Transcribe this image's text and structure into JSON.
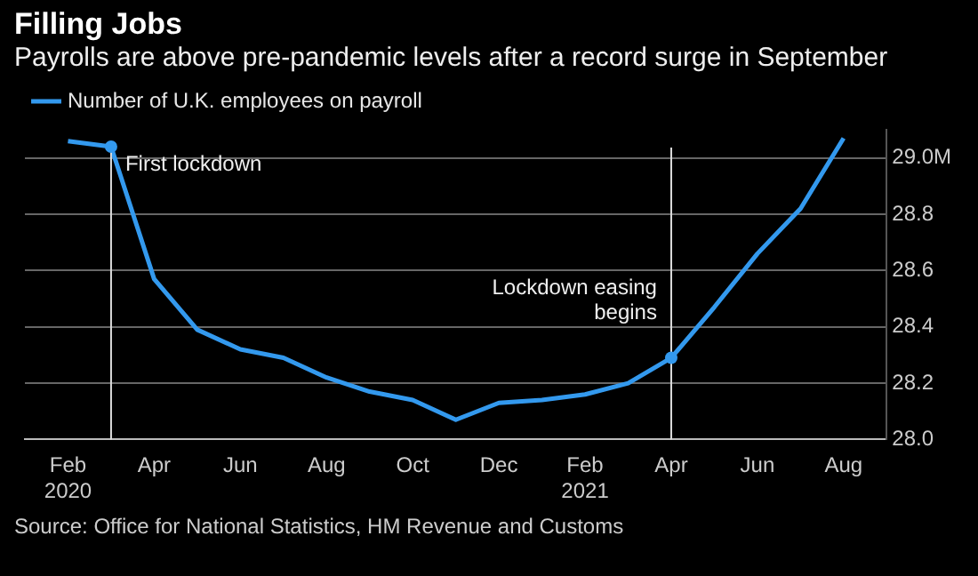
{
  "chart_data": {
    "type": "line",
    "title": "Filling Jobs",
    "subtitle": "Payrolls are above pre-pandemic levels after a record surge in September",
    "x": [
      "2020-02",
      "2020-03",
      "2020-04",
      "2020-05",
      "2020-06",
      "2020-07",
      "2020-08",
      "2020-09",
      "2020-10",
      "2020-11",
      "2020-12",
      "2021-01",
      "2021-02",
      "2021-03",
      "2021-04",
      "2021-05",
      "2021-06",
      "2021-07",
      "2021-08"
    ],
    "series": [
      {
        "name": "Number of U.K. employees on payroll",
        "color": "#3399ee",
        "values": [
          29.06,
          29.04,
          28.57,
          28.39,
          28.32,
          28.29,
          28.22,
          28.17,
          28.14,
          28.07,
          28.13,
          28.14,
          28.16,
          28.2,
          28.29,
          28.47,
          28.66,
          28.82,
          29.07
        ]
      }
    ],
    "xlim": [
      "2020-01",
      "2021-09"
    ],
    "xticks": [
      {
        "value": "2020-02",
        "label": "Feb\n2020"
      },
      {
        "value": "2020-04",
        "label": "Apr"
      },
      {
        "value": "2020-06",
        "label": "Jun"
      },
      {
        "value": "2020-08",
        "label": "Aug"
      },
      {
        "value": "2020-10",
        "label": "Oct"
      },
      {
        "value": "2020-12",
        "label": "Dec"
      },
      {
        "value": "2021-02",
        "label": "Feb\n2021"
      },
      {
        "value": "2021-04",
        "label": "Apr"
      },
      {
        "value": "2021-06",
        "label": "Jun"
      },
      {
        "value": "2021-08",
        "label": "Aug"
      }
    ],
    "ylim": [
      28.0,
      29.1
    ],
    "yticks": [
      {
        "value": 28.0,
        "label": "28.0"
      },
      {
        "value": 28.2,
        "label": "28.2"
      },
      {
        "value": 28.4,
        "label": "28.4"
      },
      {
        "value": 28.6,
        "label": "28.6"
      },
      {
        "value": 28.8,
        "label": "28.8"
      },
      {
        "value": 29.0,
        "label": "29.0M"
      }
    ],
    "ref_lines": [
      {
        "axis": "x",
        "value": "2020-03",
        "label": "First lockdown",
        "color": "#dddddd"
      },
      {
        "axis": "x",
        "value": "2021-04",
        "label": "Lockdown easing\nbegins",
        "color": "#dddddd"
      }
    ],
    "grid": "y",
    "legend": "top left",
    "marker": "none",
    "line_style": "solid",
    "annotations": [
      "Source: Office for National Statistics, HM Revenue and Customs"
    ]
  }
}
